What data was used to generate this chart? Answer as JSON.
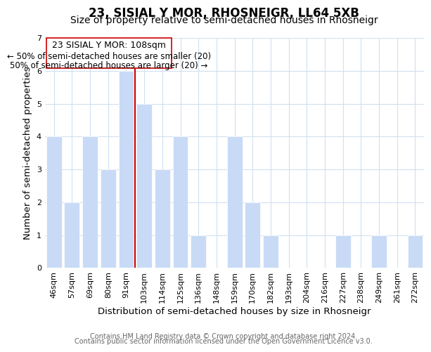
{
  "title": "23, SISIAL Y MOR, RHOSNEIGR, LL64 5XB",
  "subtitle": "Size of property relative to semi-detached houses in Rhosneigr",
  "xlabel": "Distribution of semi-detached houses by size in Rhosneigr",
  "ylabel": "Number of semi-detached properties",
  "categories": [
    "46sqm",
    "57sqm",
    "69sqm",
    "80sqm",
    "91sqm",
    "103sqm",
    "114sqm",
    "125sqm",
    "136sqm",
    "148sqm",
    "159sqm",
    "170sqm",
    "182sqm",
    "193sqm",
    "204sqm",
    "216sqm",
    "227sqm",
    "238sqm",
    "249sqm",
    "261sqm",
    "272sqm"
  ],
  "values": [
    4,
    2,
    4,
    3,
    6,
    5,
    3,
    4,
    1,
    0,
    4,
    2,
    1,
    0,
    0,
    0,
    1,
    0,
    1,
    0,
    1
  ],
  "highlight_index": 5,
  "highlight_label": "23 SISIAL Y MOR: 108sqm",
  "smaller_text": "← 50% of semi-detached houses are smaller (20)",
  "larger_text": "50% of semi-detached houses are larger (20) →",
  "bar_color": "#c8daf5",
  "bar_edge_color": "#ffffff",
  "highlight_line_color": "#cc0000",
  "annotation_box_edge": "#cc0000",
  "grid_color": "#d0e0f0",
  "ylim": [
    0,
    7
  ],
  "yticks": [
    0,
    1,
    2,
    3,
    4,
    5,
    6,
    7
  ],
  "footer1": "Contains HM Land Registry data © Crown copyright and database right 2024.",
  "footer2": "Contains public sector information licensed under the Open Government Licence v3.0.",
  "title_fontsize": 12,
  "subtitle_fontsize": 10,
  "axis_label_fontsize": 9.5,
  "tick_fontsize": 8,
  "footer_fontsize": 7,
  "annotation_fontsize": 9
}
